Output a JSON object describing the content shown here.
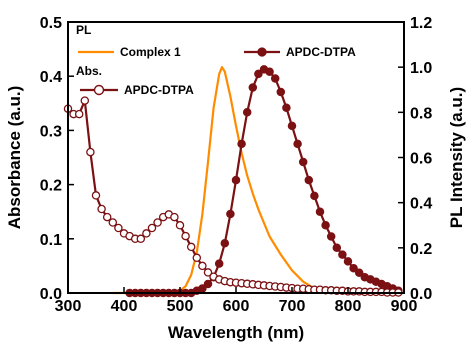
{
  "chart_data": {
    "type": "line",
    "xlabel": "Wavelength (nm)",
    "ylabel_left": "Absorbance (a.u.)",
    "ylabel_right": "PL Intensity (a.u.)",
    "xlim": [
      300,
      900
    ],
    "ylim_left": [
      0,
      0.5
    ],
    "ylim_right": [
      0,
      1.2
    ],
    "x_ticks": [
      "300",
      "400",
      "500",
      "600",
      "700",
      "800",
      "900"
    ],
    "y_left_ticks": [
      "0.0",
      "0.1",
      "0.2",
      "0.3",
      "0.4",
      "0.5"
    ],
    "y_right_ticks": [
      "0.0",
      "0.2",
      "0.4",
      "0.6",
      "0.8",
      "1.0",
      "1.2"
    ],
    "grid": false,
    "legend_placement": "top-left",
    "legend": {
      "pl_heading": "PL",
      "abs_heading": "Abs.",
      "entries": [
        "Complex 1",
        "APDC-DTPA",
        "APDC-DTPA"
      ]
    },
    "series": [
      {
        "name": "Complex 1",
        "group": "PL",
        "axis": "right",
        "color": "#FF8C00",
        "marker": "none",
        "x": [
          380,
          440,
          480,
          500,
          510,
          520,
          530,
          540,
          550,
          560,
          570,
          575,
          580,
          590,
          600,
          610,
          620,
          630,
          640,
          650,
          660,
          680,
          700,
          720,
          740,
          760,
          780
        ],
        "y": [
          0.0,
          0.0,
          0.0,
          0.01,
          0.03,
          0.08,
          0.18,
          0.35,
          0.58,
          0.82,
          0.97,
          1.0,
          0.98,
          0.87,
          0.74,
          0.62,
          0.52,
          0.44,
          0.37,
          0.31,
          0.25,
          0.17,
          0.1,
          0.05,
          0.02,
          0.01,
          0.0
        ]
      },
      {
        "name": "APDC-DTPA",
        "group": "PL",
        "axis": "right",
        "color": "#7B1113",
        "marker": "filled-circle",
        "x": [
          410,
          420,
          430,
          440,
          450,
          460,
          470,
          480,
          490,
          500,
          510,
          520,
          530,
          540,
          550,
          560,
          570,
          580,
          590,
          600,
          610,
          620,
          630,
          640,
          650,
          660,
          670,
          680,
          690,
          700,
          710,
          720,
          730,
          740,
          750,
          760,
          770,
          780,
          790,
          800,
          810,
          820,
          830,
          840,
          850,
          860,
          870,
          880,
          890
        ],
        "y": [
          0.0,
          0.0,
          0.0,
          0.0,
          0.0,
          0.0,
          0.0,
          0.0,
          0.0,
          0.0,
          0.0,
          0.0,
          0.01,
          0.02,
          0.04,
          0.07,
          0.13,
          0.22,
          0.35,
          0.5,
          0.66,
          0.8,
          0.91,
          0.97,
          0.99,
          0.98,
          0.95,
          0.89,
          0.82,
          0.74,
          0.66,
          0.58,
          0.5,
          0.43,
          0.36,
          0.3,
          0.25,
          0.2,
          0.17,
          0.14,
          0.11,
          0.09,
          0.07,
          0.06,
          0.05,
          0.04,
          0.03,
          0.02,
          0.01
        ]
      },
      {
        "name": "APDC-DTPA",
        "group": "Abs.",
        "axis": "left",
        "color": "#7B1113",
        "marker": "open-circle",
        "x": [
          300,
          310,
          320,
          330,
          340,
          350,
          360,
          370,
          380,
          390,
          400,
          410,
          420,
          430,
          440,
          450,
          460,
          470,
          480,
          490,
          500,
          510,
          520,
          530,
          540,
          550,
          560,
          570,
          580,
          590,
          600,
          610,
          620,
          630,
          640,
          650,
          660,
          670,
          680,
          690,
          700,
          710,
          720,
          730,
          740,
          750,
          760,
          770,
          780,
          790,
          800,
          810,
          820,
          830,
          840,
          850,
          860,
          870,
          880,
          890
        ],
        "y": [
          0.34,
          0.33,
          0.33,
          0.355,
          0.26,
          0.18,
          0.155,
          0.14,
          0.13,
          0.12,
          0.11,
          0.105,
          0.1,
          0.1,
          0.11,
          0.12,
          0.13,
          0.14,
          0.145,
          0.14,
          0.125,
          0.105,
          0.085,
          0.065,
          0.05,
          0.038,
          0.03,
          0.025,
          0.022,
          0.02,
          0.019,
          0.018,
          0.017,
          0.016,
          0.015,
          0.014,
          0.013,
          0.012,
          0.011,
          0.01,
          0.009,
          0.008,
          0.008,
          0.007,
          0.006,
          0.006,
          0.005,
          0.005,
          0.004,
          0.004,
          0.003,
          0.003,
          0.003,
          0.002,
          0.002,
          0.002,
          0.002,
          0.001,
          0.001,
          0.001
        ]
      }
    ]
  }
}
